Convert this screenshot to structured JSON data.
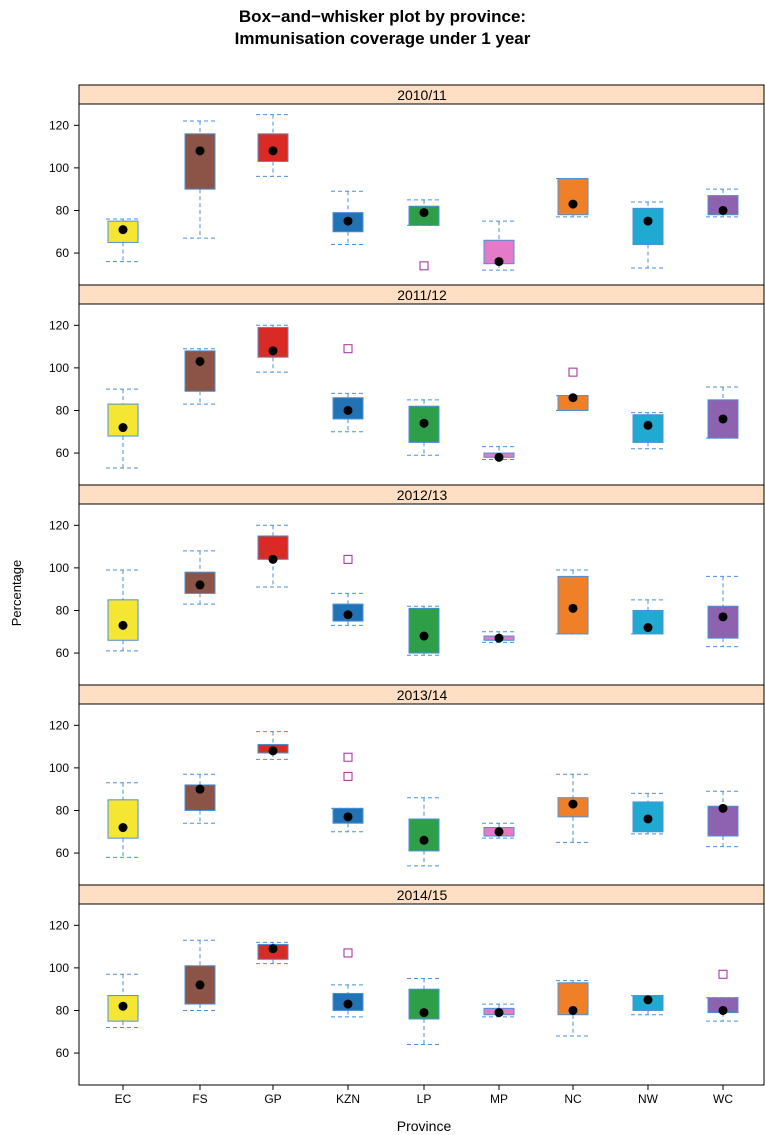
{
  "title_line1": "Box−and−whisker plot by province:",
  "title_line2": "Immunisation coverage under 1 year",
  "chart_data": {
    "type": "box",
    "xlabel": "Province",
    "ylabel": "Percentage",
    "categories": [
      "EC",
      "FS",
      "GP",
      "KZN",
      "LP",
      "MP",
      "NC",
      "NW",
      "WC"
    ],
    "yticks": [
      60,
      80,
      100,
      120
    ],
    "ylim": [
      45,
      130
    ],
    "colors": {
      "EC": "#f5e634",
      "FS": "#8b5446",
      "GP": "#d92a26",
      "KZN": "#2272b6",
      "LP": "#2e9e48",
      "MP": "#e47bc8",
      "NC": "#f08028",
      "NW": "#20aad2",
      "WC": "#8f62b0"
    },
    "box_border_color": "#4a90d9",
    "whisker_color": "#4a90d9",
    "outlier_color": "#9e2a9e",
    "strip_color": "#ffdfc4",
    "panels": [
      {
        "label": "2010/11",
        "boxes": [
          {
            "cat": "EC",
            "min": 56,
            "q1": 65,
            "med": 71,
            "q3": 75,
            "max": 76,
            "outliers": []
          },
          {
            "cat": "FS",
            "min": 67,
            "q1": 90,
            "med": 108,
            "q3": 116,
            "max": 122,
            "outliers": []
          },
          {
            "cat": "GP",
            "min": 96,
            "q1": 103,
            "med": 108,
            "q3": 116,
            "max": 125,
            "outliers": []
          },
          {
            "cat": "KZN",
            "min": 64,
            "q1": 70,
            "med": 75,
            "q3": 79,
            "max": 89,
            "outliers": []
          },
          {
            "cat": "LP",
            "min": 73,
            "q1": 73,
            "med": 79,
            "q3": 82,
            "max": 85,
            "outliers": [
              54
            ]
          },
          {
            "cat": "MP",
            "min": 52,
            "q1": 55,
            "med": 56,
            "q3": 66,
            "max": 75,
            "outliers": []
          },
          {
            "cat": "NC",
            "min": 77,
            "q1": 78,
            "med": 83,
            "q3": 95,
            "max": 95,
            "outliers": []
          },
          {
            "cat": "NW",
            "min": 53,
            "q1": 64,
            "med": 75,
            "q3": 81,
            "max": 84,
            "outliers": []
          },
          {
            "cat": "WC",
            "min": 77,
            "q1": 78,
            "med": 80,
            "q3": 87,
            "max": 90,
            "outliers": []
          }
        ]
      },
      {
        "label": "2011/12",
        "boxes": [
          {
            "cat": "EC",
            "min": 53,
            "q1": 68,
            "med": 72,
            "q3": 83,
            "max": 90,
            "outliers": []
          },
          {
            "cat": "FS",
            "min": 83,
            "q1": 89,
            "med": 103,
            "q3": 108,
            "max": 109,
            "outliers": []
          },
          {
            "cat": "GP",
            "min": 98,
            "q1": 105,
            "med": 108,
            "q3": 119,
            "max": 120,
            "outliers": []
          },
          {
            "cat": "KZN",
            "min": 70,
            "q1": 76,
            "med": 80,
            "q3": 86,
            "max": 88,
            "outliers": [
              109
            ]
          },
          {
            "cat": "LP",
            "min": 59,
            "q1": 65,
            "med": 74,
            "q3": 82,
            "max": 85,
            "outliers": []
          },
          {
            "cat": "MP",
            "min": 57,
            "q1": 58,
            "med": 58,
            "q3": 60,
            "max": 63,
            "outliers": []
          },
          {
            "cat": "NC",
            "min": 80,
            "q1": 80,
            "med": 86,
            "q3": 87,
            "max": 87,
            "outliers": [
              98
            ]
          },
          {
            "cat": "NW",
            "min": 62,
            "q1": 65,
            "med": 73,
            "q3": 78,
            "max": 79,
            "outliers": []
          },
          {
            "cat": "WC",
            "min": 67,
            "q1": 67,
            "med": 76,
            "q3": 85,
            "max": 91,
            "outliers": []
          }
        ]
      },
      {
        "label": "2012/13",
        "boxes": [
          {
            "cat": "EC",
            "min": 61,
            "q1": 66,
            "med": 73,
            "q3": 85,
            "max": 99,
            "outliers": []
          },
          {
            "cat": "FS",
            "min": 83,
            "q1": 88,
            "med": 92,
            "q3": 98,
            "max": 108,
            "outliers": []
          },
          {
            "cat": "GP",
            "min": 91,
            "q1": 104,
            "med": 104,
            "q3": 115,
            "max": 120,
            "outliers": []
          },
          {
            "cat": "KZN",
            "min": 73,
            "q1": 75,
            "med": 78,
            "q3": 83,
            "max": 88,
            "outliers": [
              104
            ]
          },
          {
            "cat": "LP",
            "min": 59,
            "q1": 60,
            "med": 68,
            "q3": 81,
            "max": 82,
            "outliers": []
          },
          {
            "cat": "MP",
            "min": 65,
            "q1": 66,
            "med": 67,
            "q3": 68,
            "max": 70,
            "outliers": []
          },
          {
            "cat": "NC",
            "min": 69,
            "q1": 69,
            "med": 81,
            "q3": 96,
            "max": 99,
            "outliers": []
          },
          {
            "cat": "NW",
            "min": 69,
            "q1": 69,
            "med": 72,
            "q3": 80,
            "max": 85,
            "outliers": []
          },
          {
            "cat": "WC",
            "min": 63,
            "q1": 67,
            "med": 77,
            "q3": 82,
            "max": 96,
            "outliers": []
          }
        ]
      },
      {
        "label": "2013/14",
        "boxes": [
          {
            "cat": "EC",
            "min": 58,
            "q1": 67,
            "med": 72,
            "q3": 85,
            "max": 93,
            "outliers": []
          },
          {
            "cat": "FS",
            "min": 74,
            "q1": 80,
            "med": 90,
            "q3": 92,
            "max": 97,
            "outliers": []
          },
          {
            "cat": "GP",
            "min": 104,
            "q1": 107,
            "med": 108,
            "q3": 111,
            "max": 117,
            "outliers": []
          },
          {
            "cat": "KZN",
            "min": 70,
            "q1": 74,
            "med": 77,
            "q3": 81,
            "max": 81,
            "outliers": [
              96,
              105
            ]
          },
          {
            "cat": "LP",
            "min": 54,
            "q1": 61,
            "med": 66,
            "q3": 76,
            "max": 86,
            "outliers": []
          },
          {
            "cat": "MP",
            "min": 67,
            "q1": 68,
            "med": 70,
            "q3": 72,
            "max": 74,
            "outliers": []
          },
          {
            "cat": "NC",
            "min": 65,
            "q1": 77,
            "med": 83,
            "q3": 86,
            "max": 97,
            "outliers": []
          },
          {
            "cat": "NW",
            "min": 69,
            "q1": 70,
            "med": 76,
            "q3": 84,
            "max": 88,
            "outliers": []
          },
          {
            "cat": "WC",
            "min": 63,
            "q1": 68,
            "med": 81,
            "q3": 82,
            "max": 89,
            "outliers": []
          }
        ]
      },
      {
        "label": "2014/15",
        "boxes": [
          {
            "cat": "EC",
            "min": 72,
            "q1": 75,
            "med": 82,
            "q3": 87,
            "max": 97,
            "outliers": []
          },
          {
            "cat": "FS",
            "min": 80,
            "q1": 83,
            "med": 92,
            "q3": 101,
            "max": 113,
            "outliers": []
          },
          {
            "cat": "GP",
            "min": 102,
            "q1": 104,
            "med": 109,
            "q3": 111,
            "max": 112,
            "outliers": []
          },
          {
            "cat": "KZN",
            "min": 77,
            "q1": 80,
            "med": 83,
            "q3": 88,
            "max": 92,
            "outliers": [
              107
            ]
          },
          {
            "cat": "LP",
            "min": 64,
            "q1": 76,
            "med": 79,
            "q3": 90,
            "max": 95,
            "outliers": []
          },
          {
            "cat": "MP",
            "min": 77,
            "q1": 78,
            "med": 79,
            "q3": 81,
            "max": 83,
            "outliers": []
          },
          {
            "cat": "NC",
            "min": 68,
            "q1": 78,
            "med": 80,
            "q3": 93,
            "max": 94,
            "outliers": []
          },
          {
            "cat": "NW",
            "min": 78,
            "q1": 80,
            "med": 85,
            "q3": 87,
            "max": 87,
            "outliers": []
          },
          {
            "cat": "WC",
            "min": 75,
            "q1": 79,
            "med": 80,
            "q3": 86,
            "max": 86,
            "outliers": [
              97
            ]
          }
        ]
      }
    ]
  }
}
